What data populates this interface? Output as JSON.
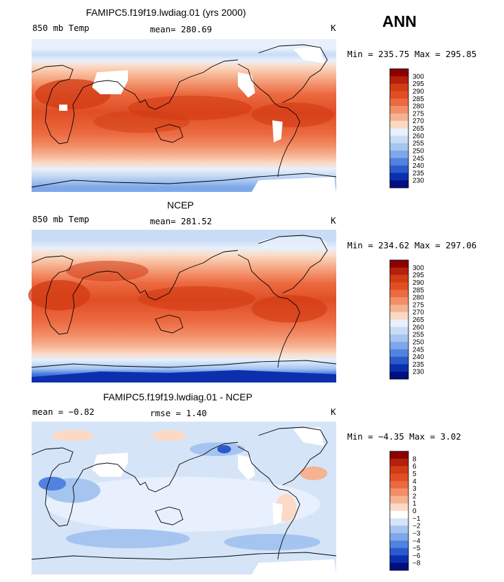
{
  "season": "ANN",
  "units": "K",
  "panels": [
    {
      "id": "model",
      "title": "FAMIPC5.f19f19.lwdiag.01 (yrs 2000)",
      "field_label": "850 mb Temp",
      "stat_text": "mean= 280.69",
      "units": "K",
      "minmax_text": "Min = 235.75 Max = 295.85",
      "colorbar": {
        "levels": [
          "300",
          "295",
          "290",
          "285",
          "280",
          "275",
          "270",
          "265",
          "260",
          "255",
          "250",
          "245",
          "240",
          "235",
          "230"
        ],
        "colors": [
          "#8b0000",
          "#b3200c",
          "#d23b14",
          "#e04e25",
          "#ec6a40",
          "#f28e68",
          "#f6b391",
          "#fbd9c4",
          "#e8f0fb",
          "#c9dcf6",
          "#a5c4f0",
          "#7fa8ea",
          "#5282e0",
          "#2a5acd",
          "#0d2fae",
          "#000f80"
        ]
      }
    },
    {
      "id": "obs",
      "title": "NCEP",
      "field_label": "850 mb Temp",
      "stat_text": "mean= 281.52",
      "units": "K",
      "minmax_text": "Min = 234.62 Max = 297.06",
      "colorbar": {
        "levels": [
          "300",
          "295",
          "290",
          "285",
          "280",
          "275",
          "270",
          "265",
          "260",
          "255",
          "250",
          "245",
          "240",
          "235",
          "230"
        ],
        "colors": [
          "#8b0000",
          "#b3200c",
          "#d23b14",
          "#e04e25",
          "#ec6a40",
          "#f28e68",
          "#f6b391",
          "#fbd9c4",
          "#e8f0fb",
          "#c9dcf6",
          "#a5c4f0",
          "#7fa8ea",
          "#5282e0",
          "#2a5acd",
          "#0d2fae",
          "#000f80"
        ]
      }
    },
    {
      "id": "diff",
      "title": "FAMIPC5.f19f19.lwdiag.01 - NCEP",
      "field_label": "mean =  −0.82",
      "stat_text": "rmse =   1.40",
      "units": "K",
      "minmax_text": "Min =  −4.35 Max =   3.02",
      "colorbar": {
        "levels": [
          "8",
          "6",
          "5",
          "4",
          "3",
          "2",
          "1",
          "0",
          "−1",
          "−2",
          "−3",
          "−4",
          "−5",
          "−6",
          "−8"
        ],
        "colors": [
          "#8b0000",
          "#b3200c",
          "#d23b14",
          "#e04e25",
          "#ec6a40",
          "#f28e68",
          "#f6b391",
          "#fbd9c4",
          "#ffffff",
          "#d6e4f8",
          "#a5c4f0",
          "#7fa8ea",
          "#5282e0",
          "#2a5acd",
          "#0d2fae",
          "#000f80"
        ]
      }
    }
  ],
  "chart_data": [
    {
      "type": "heatmap",
      "title": "FAMIPC5.f19f19.lwdiag.01 (yrs 2000)",
      "subtitle": "850 mb Temp",
      "annotations": [
        "mean= 280.69",
        "Min = 235.75 Max = 295.85"
      ],
      "units": "K",
      "contour_levels": [
        230,
        235,
        240,
        245,
        250,
        255,
        260,
        265,
        270,
        275,
        280,
        285,
        290,
        295,
        300
      ],
      "min": 235.75,
      "max": 295.85,
      "mean": 280.69
    },
    {
      "type": "heatmap",
      "title": "NCEP",
      "subtitle": "850 mb Temp",
      "annotations": [
        "mean= 281.52",
        "Min = 234.62 Max = 297.06"
      ],
      "units": "K",
      "contour_levels": [
        230,
        235,
        240,
        245,
        250,
        255,
        260,
        265,
        270,
        275,
        280,
        285,
        290,
        295,
        300
      ],
      "min": 234.62,
      "max": 297.06,
      "mean": 281.52
    },
    {
      "type": "heatmap",
      "title": "FAMIPC5.f19f19.lwdiag.01 - NCEP",
      "annotations": [
        "mean = −0.82",
        "rmse = 1.40",
        "Min = −4.35 Max = 3.02"
      ],
      "units": "K",
      "contour_levels": [
        -8,
        -6,
        -5,
        -4,
        -3,
        -2,
        -1,
        0,
        1,
        2,
        3,
        4,
        5,
        6,
        8
      ],
      "min": -4.35,
      "max": 3.02,
      "mean": -0.82,
      "rmse": 1.4
    }
  ]
}
